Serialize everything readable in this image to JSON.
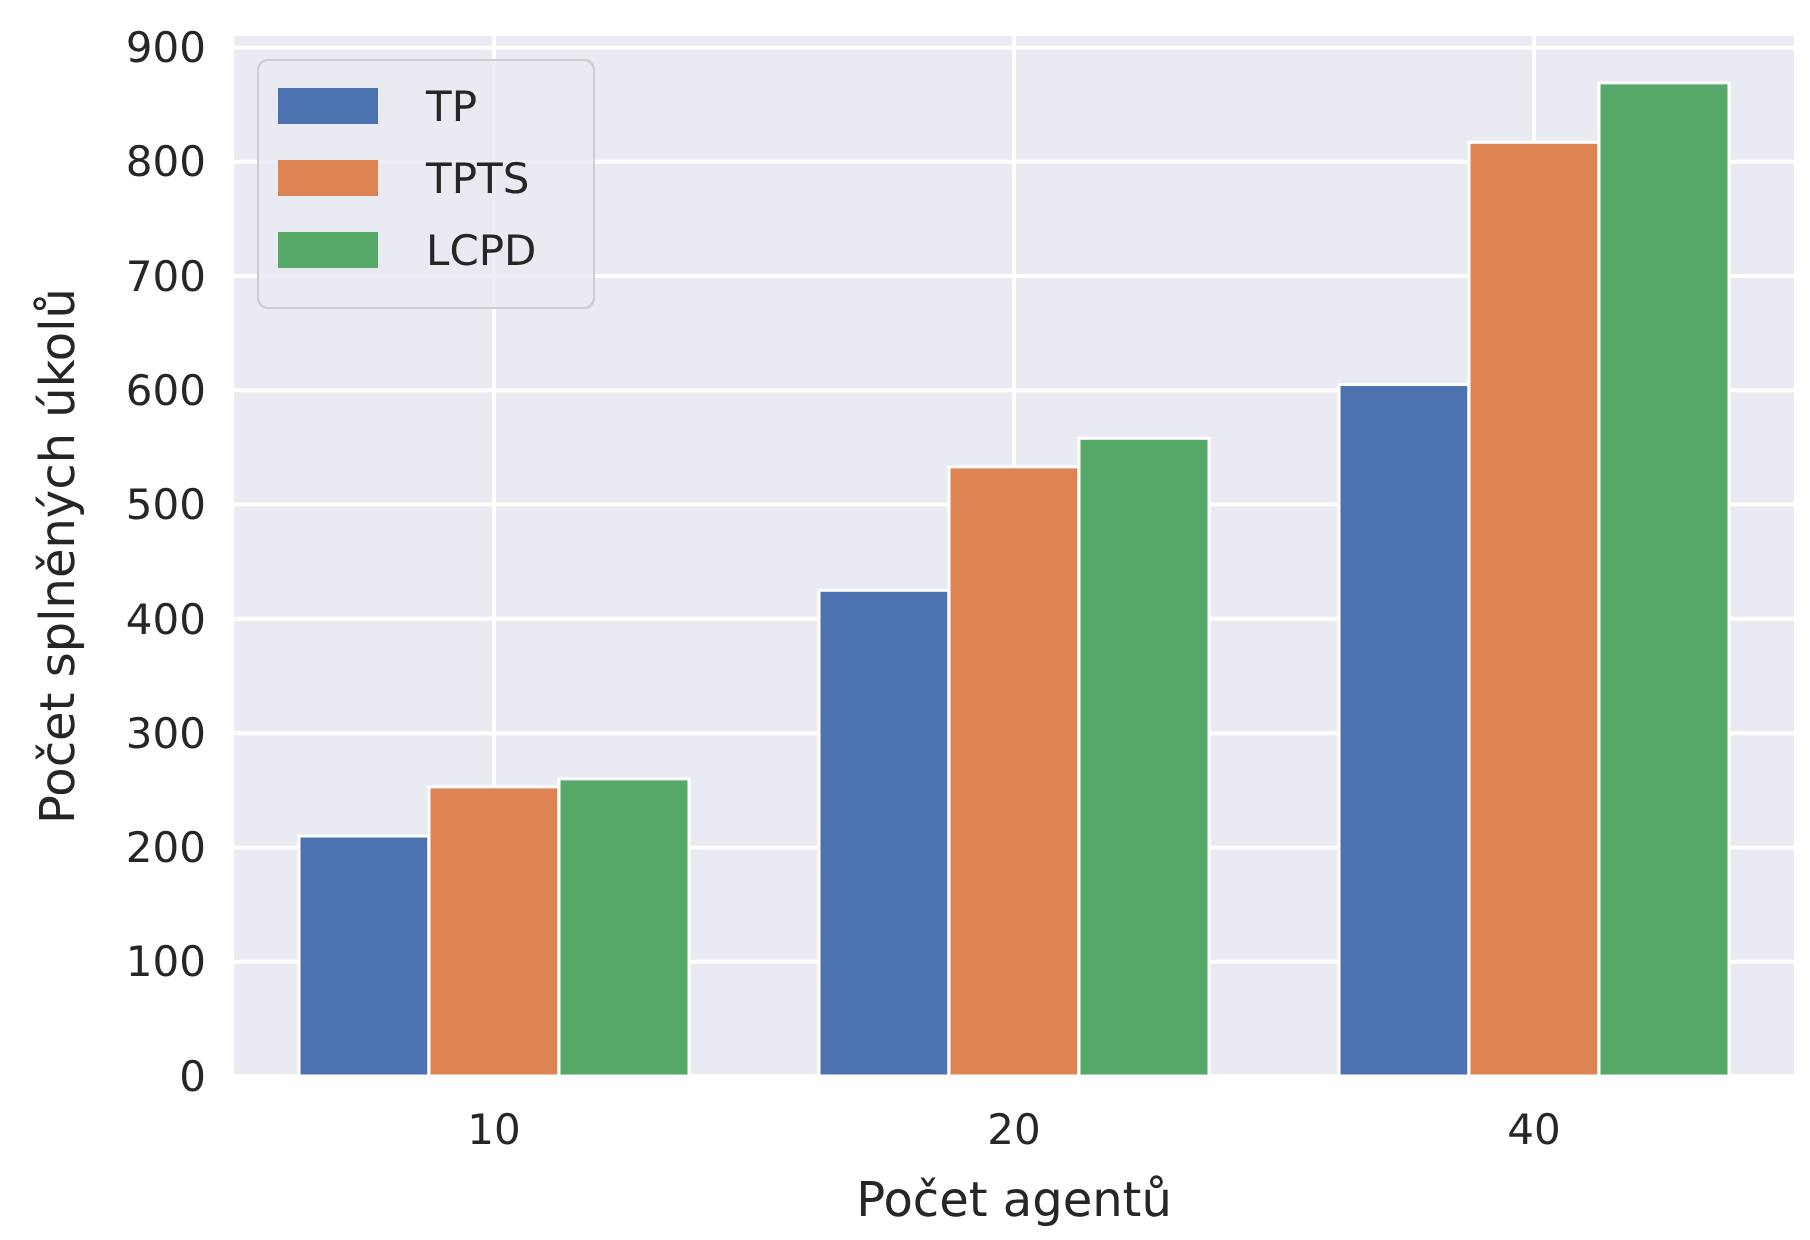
{
  "chart_data": {
    "type": "bar",
    "xlabel": "Počet agentů",
    "ylabel": "Počet splněných úkolů",
    "categories": [
      "10",
      "20",
      "40"
    ],
    "series": [
      {
        "name": "TP",
        "color": "#4c72b0",
        "values": [
          210,
          425,
          605
        ]
      },
      {
        "name": "TPTS",
        "color": "#dd8452",
        "values": [
          253,
          533,
          817
        ]
      },
      {
        "name": "LCPD",
        "color": "#55a868",
        "values": [
          260,
          558,
          869
        ]
      }
    ],
    "ylim": [
      0,
      910
    ],
    "yticks": [
      0,
      100,
      200,
      300,
      400,
      500,
      600,
      700,
      800,
      900
    ],
    "grid": true,
    "legend": "top left"
  }
}
